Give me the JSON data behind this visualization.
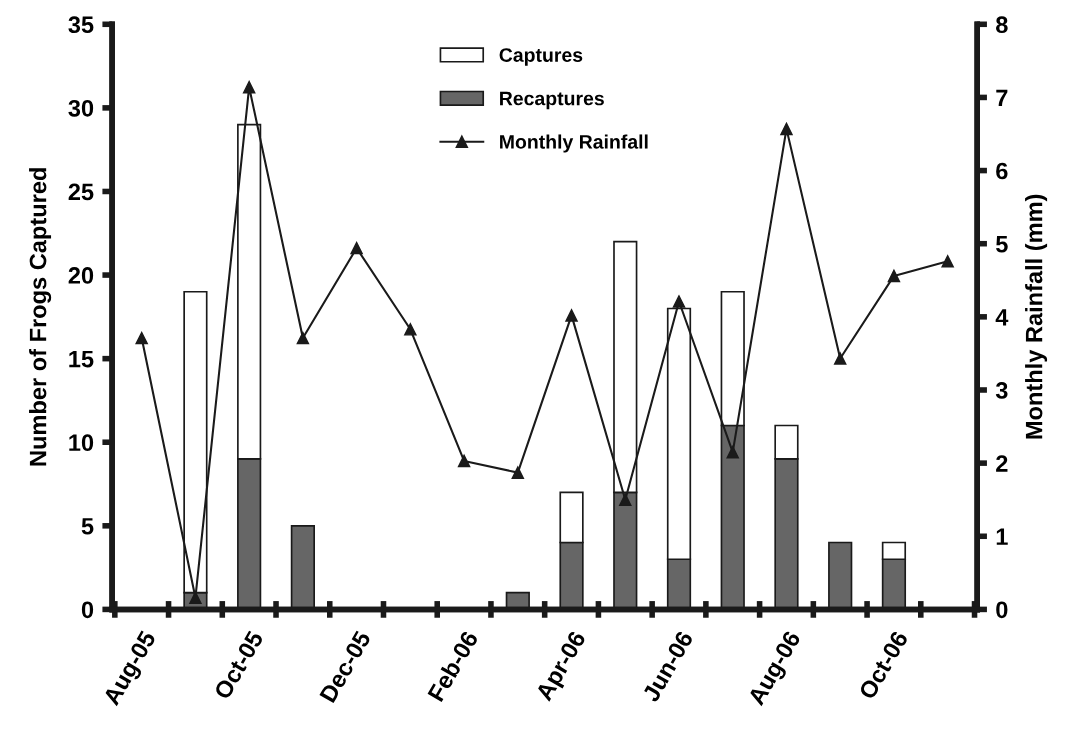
{
  "chart_data": {
    "type": "bar",
    "stacked": true,
    "ylabel": "Number of Frogs Captured",
    "y2label": "Monthly Rainfall (mm)",
    "categories": [
      "Aug-05",
      null,
      "Oct-05",
      null,
      "Dec-05",
      null,
      "Feb-06",
      null,
      "Apr-06",
      null,
      "Jun-06",
      null,
      "Aug-06",
      null,
      "Oct-06",
      null
    ],
    "series": [
      {
        "name": "Recaptures",
        "color": "#666666",
        "values": [
          0,
          1,
          9,
          5,
          0,
          0,
          0,
          1,
          4,
          7,
          3,
          11,
          9,
          4,
          3,
          0
        ]
      },
      {
        "name": "Captures",
        "color": "#ffffff",
        "values": [
          0,
          18,
          20,
          0,
          0,
          0,
          0,
          0,
          3,
          15,
          15,
          8,
          2,
          0,
          1,
          0
        ]
      },
      {
        "name": "Monthly Rainfall",
        "type": "line",
        "axis": "y2",
        "color": "#1a1a1a",
        "marker": "triangle",
        "line_style": "solid",
        "values": [
          3.71,
          0.16,
          7.14,
          3.71,
          4.94,
          3.83,
          2.03,
          1.87,
          4.02,
          1.5,
          4.21,
          2.15,
          6.57,
          3.43,
          4.56,
          4.76
        ]
      }
    ],
    "ylim": [
      0,
      35
    ],
    "yticks": [
      0,
      5,
      10,
      15,
      20,
      25,
      30,
      35
    ],
    "y2lim": [
      0,
      8
    ],
    "y2ticks": [
      0,
      1,
      2,
      3,
      4,
      5,
      6,
      7,
      8
    ],
    "legend": "top",
    "grid": false
  }
}
